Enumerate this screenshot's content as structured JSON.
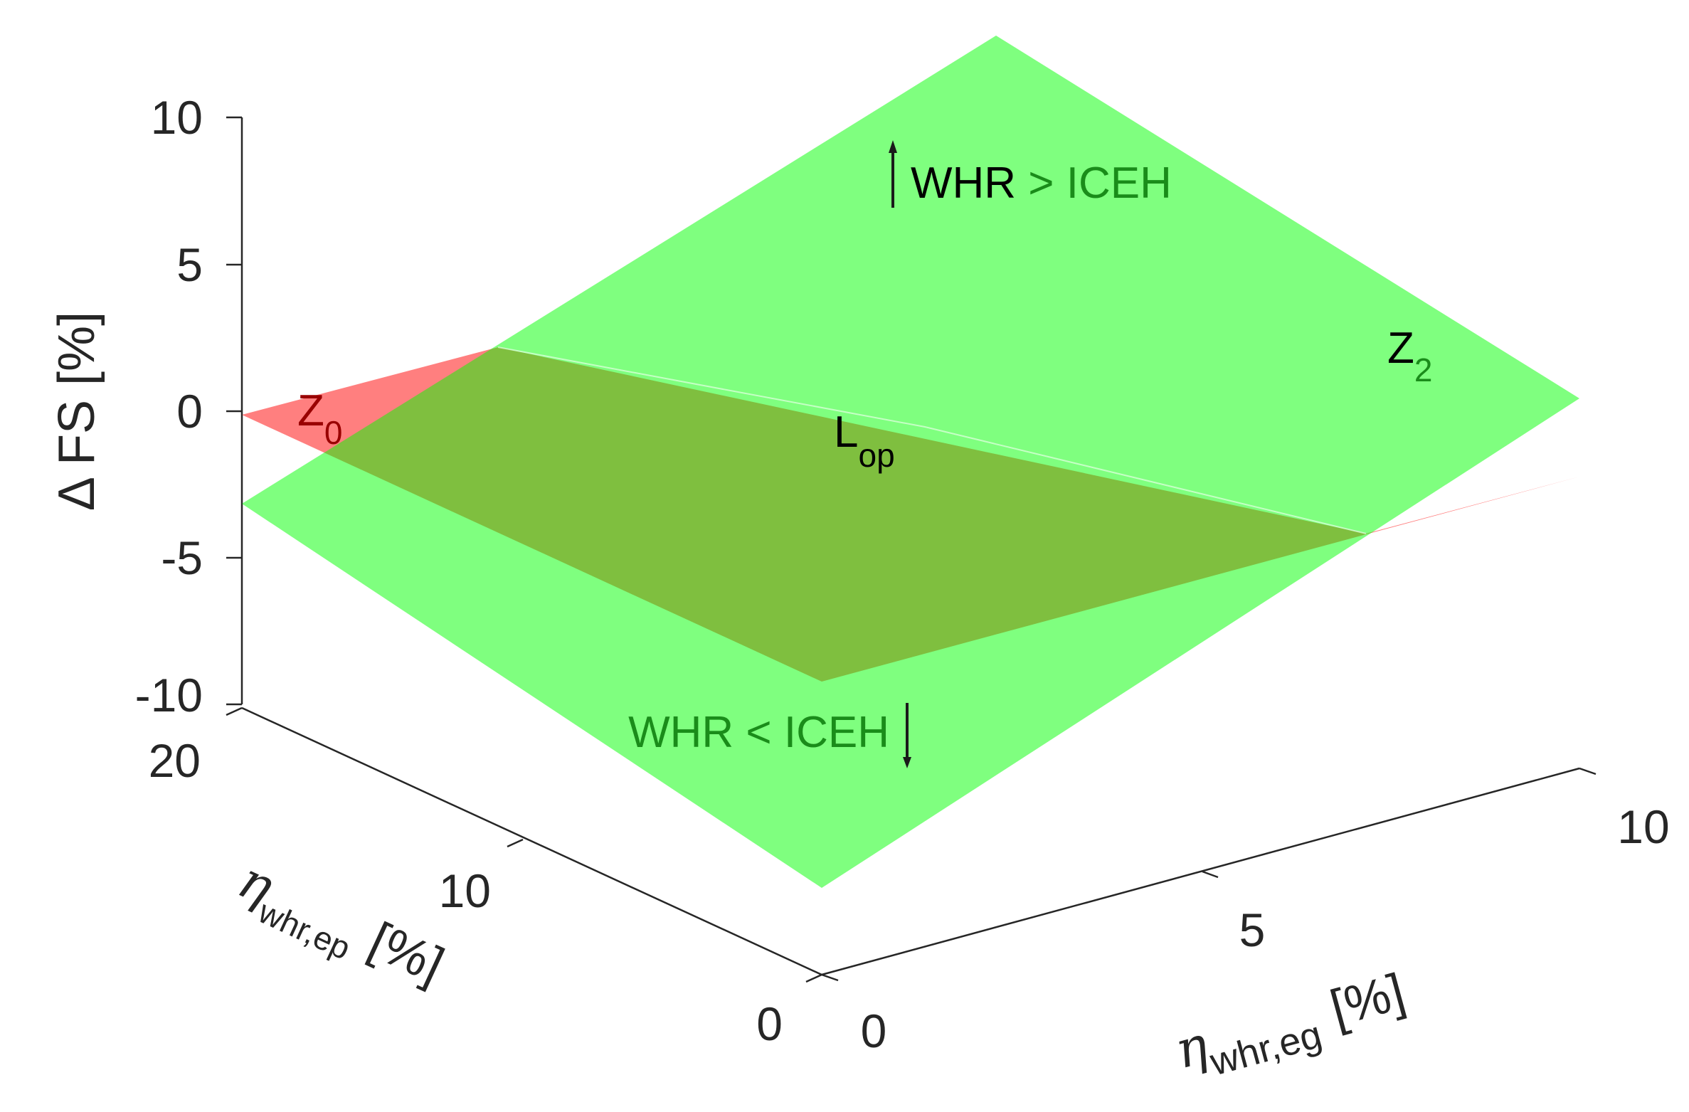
{
  "chart_data": {
    "type": "surface3d",
    "z_axis": {
      "label": "Δ FS [%]",
      "ticks": [
        "10",
        "5",
        "0",
        "-5",
        "-10"
      ],
      "range": [
        -10,
        10
      ]
    },
    "ep_axis": {
      "symbol": "η",
      "subscript": "whr,ep",
      "unit": "[%]",
      "ticks": [
        "20",
        "10",
        "0"
      ],
      "range": [
        0,
        20
      ]
    },
    "eg_axis": {
      "symbol": "η",
      "subscript": "whr,eg",
      "unit": "[%]",
      "ticks": [
        "0",
        "5",
        "10"
      ],
      "range": [
        0,
        10
      ]
    },
    "surfaces": [
      {
        "name": "Z0",
        "color": "#ff0000",
        "opacity": 0.5
      },
      {
        "name": "Z2",
        "color": "#00ff00",
        "opacity": 0.5
      }
    ],
    "labels": {
      "z0": {
        "main": "Z",
        "sub": "0",
        "color": "#990000"
      },
      "z2": {
        "main": "Z",
        "sub": "2",
        "color": "#000000"
      },
      "lop": {
        "main": "L",
        "sub": "op",
        "color": "#000000"
      },
      "upper": {
        "text_a": "WHR",
        "text_b": " > ICEH",
        "color_a": "#000000",
        "color_b": "#1a8c1a"
      },
      "lower": {
        "text": "WHR < ICEH",
        "color": "#1a8c1a"
      }
    }
  }
}
